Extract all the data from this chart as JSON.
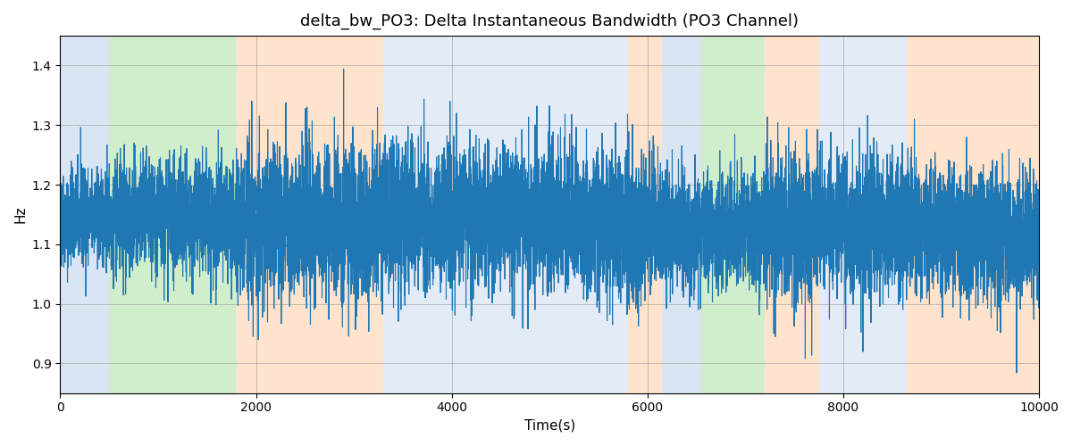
{
  "title": "delta_bw_PO3: Delta Instantaneous Bandwidth (PO3 Channel)",
  "xlabel": "Time(s)",
  "ylabel": "Hz",
  "xlim": [
    0,
    10000
  ],
  "ylim": [
    0.85,
    1.45
  ],
  "line_color": "#1f77b4",
  "line_width": 0.8,
  "background_regions": [
    {
      "xmin": 0,
      "xmax": 500,
      "color": "#aec6e8",
      "alpha": 0.45
    },
    {
      "xmin": 500,
      "xmax": 1800,
      "color": "#98d98e",
      "alpha": 0.45
    },
    {
      "xmin": 1800,
      "xmax": 3300,
      "color": "#ffc89a",
      "alpha": 0.5
    },
    {
      "xmin": 3300,
      "xmax": 5800,
      "color": "#aec6e8",
      "alpha": 0.35
    },
    {
      "xmin": 5800,
      "xmax": 6150,
      "color": "#ffc89a",
      "alpha": 0.5
    },
    {
      "xmin": 6150,
      "xmax": 6550,
      "color": "#aec6e8",
      "alpha": 0.45
    },
    {
      "xmin": 6550,
      "xmax": 7200,
      "color": "#98d98e",
      "alpha": 0.45
    },
    {
      "xmin": 7200,
      "xmax": 7750,
      "color": "#ffc89a",
      "alpha": 0.5
    },
    {
      "xmin": 7750,
      "xmax": 8650,
      "color": "#aec6e8",
      "alpha": 0.35
    },
    {
      "xmin": 8650,
      "xmax": 10000,
      "color": "#ffc89a",
      "alpha": 0.5
    }
  ],
  "seed": 42,
  "n_points": 10000,
  "xticks": [
    0,
    2000,
    4000,
    6000,
    8000,
    10000
  ],
  "yticks": [
    0.9,
    1.0,
    1.1,
    1.2,
    1.3,
    1.4
  ],
  "base_mean": 1.13,
  "noise_std": 0.055
}
